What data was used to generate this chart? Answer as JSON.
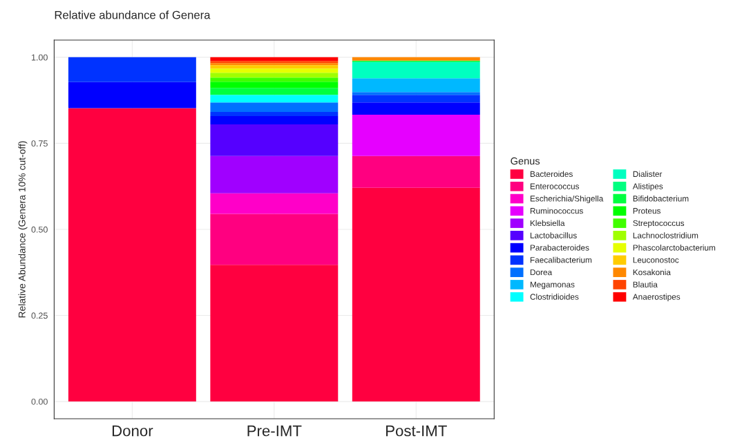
{
  "chart_data": {
    "type": "bar",
    "stacked": true,
    "title": "Relative abundance of Genera",
    "ylabel": "Relative Abundance (Genera 10% cut-off)",
    "legend_title": "Genus",
    "legend": "right",
    "grid": true,
    "categories": [
      "Donor",
      "Pre-IMT",
      "Post-IMT"
    ],
    "ylim": [
      -0.05,
      1.05
    ],
    "yticks": [
      {
        "value": 0,
        "label": "0.00"
      },
      {
        "value": 0.25,
        "label": "0.25"
      },
      {
        "value": 0.5,
        "label": "0.50"
      },
      {
        "value": 0.75,
        "label": "0.75"
      },
      {
        "value": 1,
        "label": "1.00"
      }
    ],
    "series": [
      {
        "name": "Bacteroides",
        "color": "#ff0040",
        "values": [
          0.852,
          0.397,
          0.621
        ]
      },
      {
        "name": "Enterococcus",
        "color": "#ff0080",
        "values": [
          null,
          0.148,
          0.092
        ]
      },
      {
        "name": "Escherichia/Shigella",
        "color": "#ff00c8",
        "values": [
          null,
          0.06,
          null
        ]
      },
      {
        "name": "Ruminococcus",
        "color": "#e600ff",
        "values": [
          null,
          null,
          0.12
        ]
      },
      {
        "name": "Klebsiella",
        "color": "#a000ff",
        "values": [
          null,
          0.108,
          null
        ]
      },
      {
        "name": "Lactobacillus",
        "color": "#5500ff",
        "values": [
          null,
          0.092,
          null
        ]
      },
      {
        "name": "Parabacteroides",
        "color": "#0000ff",
        "values": [
          0.076,
          0.024,
          0.036
        ]
      },
      {
        "name": "Faecalibacterium",
        "color": "#0033ff",
        "values": [
          0.072,
          0.012,
          0.022
        ]
      },
      {
        "name": "Dorea",
        "color": "#0070ff",
        "values": [
          null,
          0.028,
          0.008
        ]
      },
      {
        "name": "Megamonas",
        "color": "#00b8ff",
        "values": [
          null,
          null,
          0.04
        ]
      },
      {
        "name": "Clostridioides",
        "color": "#00ffff",
        "values": [
          null,
          0.022,
          null
        ]
      },
      {
        "name": "Dialister",
        "color": "#00ffc0",
        "values": [
          null,
          null,
          0.047
        ]
      },
      {
        "name": "Alistipes",
        "color": "#00ff80",
        "values": [
          null,
          null,
          null
        ]
      },
      {
        "name": "Bifidobacterium",
        "color": "#00ff40",
        "values": [
          null,
          0.02,
          0.004
        ]
      },
      {
        "name": "Proteus",
        "color": "#00ff00",
        "values": [
          null,
          0.018,
          null
        ]
      },
      {
        "name": "Streptococcus",
        "color": "#40ff00",
        "values": [
          null,
          0.012,
          null
        ]
      },
      {
        "name": "Lachnoclostridium",
        "color": "#a0ff00",
        "values": [
          null,
          0.014,
          null
        ]
      },
      {
        "name": "Phascolarctobacterium",
        "color": "#e6ff00",
        "values": [
          null,
          0.012,
          null
        ]
      },
      {
        "name": "Leuconostoc",
        "color": "#ffcc00",
        "values": [
          null,
          0.01,
          null
        ]
      },
      {
        "name": "Kosakonia",
        "color": "#ff8800",
        "values": [
          null,
          0.006,
          0.01
        ]
      },
      {
        "name": "Blautia",
        "color": "#ff4400",
        "values": [
          null,
          0.006,
          null
        ]
      },
      {
        "name": "Anaerostipes",
        "color": "#ff0000",
        "values": [
          null,
          0.011,
          null
        ]
      }
    ]
  }
}
